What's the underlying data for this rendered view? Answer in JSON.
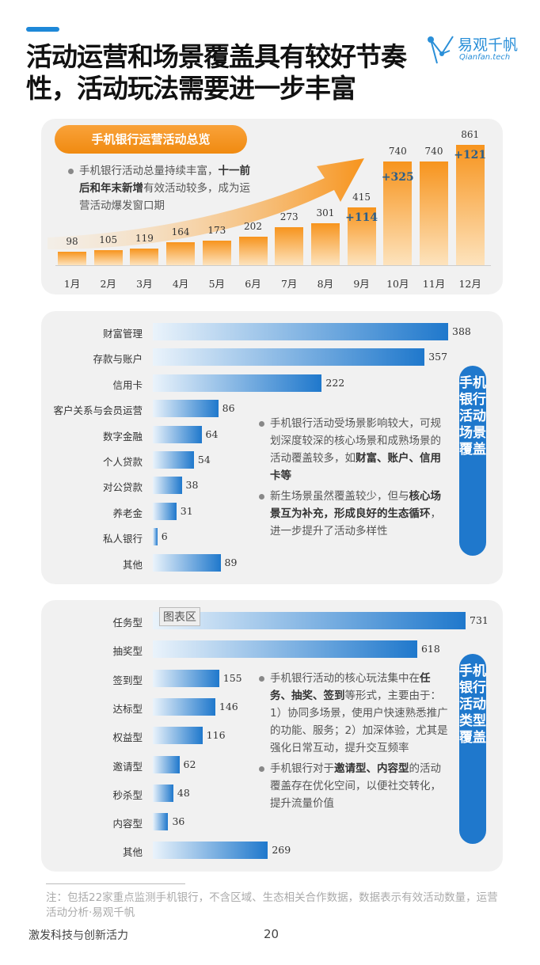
{
  "title": "活动运营和场景覆盖具有较好节奏性，活动玩法需要进一步丰富",
  "logo": {
    "cn": "易观千帆",
    "en": "Qianfan.tech"
  },
  "chart_data": [
    {
      "type": "bar",
      "title": "手机银行运营活动总览",
      "categories": [
        "1月",
        "2月",
        "3月",
        "4月",
        "5月",
        "6月",
        "7月",
        "8月",
        "9月",
        "10月",
        "11月",
        "12月"
      ],
      "values": [
        98,
        105,
        119,
        164,
        173,
        202,
        273,
        301,
        415,
        740,
        740,
        861
      ],
      "annotations": [
        {
          "category": "9月",
          "text": "+114"
        },
        {
          "category": "10月",
          "text": "+325"
        },
        {
          "category": "12月",
          "text": "+121"
        }
      ],
      "bar_color": "#f7941d",
      "grid": false
    },
    {
      "type": "bar",
      "orientation": "horizontal",
      "title": "手机银行活动场景覆盖",
      "categories": [
        "财富管理",
        "存款与账户",
        "信用卡",
        "客户关系与会员运营",
        "数字金融",
        "个人贷款",
        "对公贷款",
        "养老金",
        "私人银行",
        "其他"
      ],
      "values": [
        388,
        357,
        222,
        86,
        64,
        54,
        38,
        31,
        6,
        89
      ],
      "bar_color": "#1f78cc",
      "grid": false
    },
    {
      "type": "bar",
      "orientation": "horizontal",
      "title": "手机银行活动类型覆盖",
      "categories": [
        "任务型",
        "抽奖型",
        "签到型",
        "达标型",
        "权益型",
        "邀请型",
        "秒杀型",
        "内容型",
        "其他"
      ],
      "values": [
        731,
        618,
        155,
        146,
        116,
        62,
        48,
        36,
        269
      ],
      "bar_color": "#1f78cc",
      "grid": false
    }
  ],
  "notes": {
    "n1": [
      [
        {
          "t": "手机银行活动总量持续丰富，"
        },
        {
          "t": "十一前后和年末新增",
          "b": 1
        },
        {
          "t": "有效活动较多，成为运营活动爆发窗口期"
        }
      ]
    ],
    "n2": [
      [
        {
          "t": "手机银行活动受场景影响较大，可规划深度较深的核心场景和成熟场景的活动覆盖较多，如"
        },
        {
          "t": "财富、账户、信用卡等",
          "b": 1
        }
      ],
      [
        {
          "t": "新生场景虽然覆盖较少，但与"
        },
        {
          "t": "核心场景互为补充，形成良好的生态循环",
          "b": 1
        },
        {
          "t": "，进一步提升了活动多样性"
        }
      ]
    ],
    "n3": [
      [
        {
          "t": "手机银行活动的核心玩法集中在"
        },
        {
          "t": "任务、抽奖、签到",
          "b": 1
        },
        {
          "t": "等形式，主要由于：1）协同多场景，使用户快速熟悉推广的功能、服务；2）加深体验，尤其是强化日常互动，提升交互频率"
        }
      ],
      [
        {
          "t": "手机银行对于"
        },
        {
          "t": "邀请型、内容型",
          "b": 1
        },
        {
          "t": "的活动覆盖存在优化空间，以便社交转化，提升流量价值"
        }
      ]
    ]
  },
  "chart_area_tag": "图表区",
  "footnote": "注：包括22家重点监测手机银行，不含区域、生态相关合作数据，数据表示有效活动数量，运营活动分析·易观千帆",
  "footer": {
    "slogan": "激发科技与创新活力",
    "page": "20"
  }
}
